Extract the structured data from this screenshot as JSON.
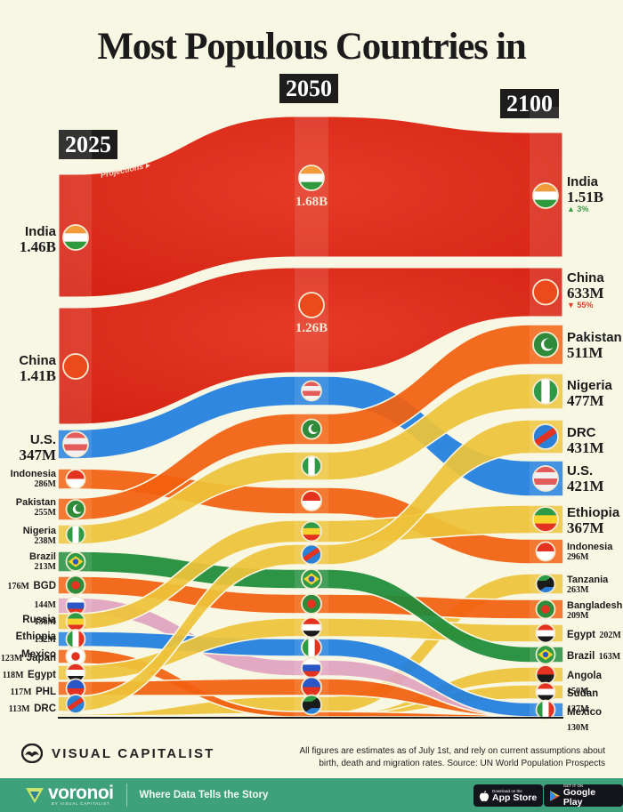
{
  "title": "Most Populous Countries in",
  "years": [
    "2025",
    "2050",
    "2100"
  ],
  "projections_label": "Projections ▸",
  "colors": {
    "background": "#f8f7e4",
    "india_china": "#e5321f",
    "us": "#1f7ee0",
    "orange": "#f2600f",
    "yellow": "#eec33a",
    "green": "#1d8c3a",
    "pink": "#e0a3c0",
    "footer": "#3fa07c"
  },
  "labels_2025": [
    {
      "name": "India",
      "value": "1.46B",
      "style": "big"
    },
    {
      "name": "China",
      "value": "1.41B",
      "style": "big"
    },
    {
      "name": "U.S.",
      "value": "347M",
      "style": "big"
    },
    {
      "name": "Indonesia",
      "value": "286M",
      "style": "small"
    },
    {
      "name": "Pakistan",
      "value": "255M",
      "style": "small"
    },
    {
      "name": "Nigeria",
      "value": "238M",
      "style": "small"
    },
    {
      "name": "Brazil",
      "value": "213M",
      "style": "small"
    },
    {
      "name": "BGD",
      "value": "176M",
      "style": "inline"
    },
    {
      "name": "Russia",
      "value": "144M",
      "style": "inline"
    },
    {
      "name": "Ethiopia",
      "value": "136M",
      "style": "inline"
    },
    {
      "name": "Mexico",
      "value": "132M",
      "style": "inline"
    },
    {
      "name": "Japan",
      "value": "123M",
      "style": "inline"
    },
    {
      "name": "Egypt",
      "value": "118M",
      "style": "inline"
    },
    {
      "name": "PHL",
      "value": "117M",
      "style": "inline"
    },
    {
      "name": "DRC",
      "value": "113M",
      "style": "inline"
    }
  ],
  "labels_2050": [
    {
      "name": "India",
      "value": "1.68B"
    },
    {
      "name": "China",
      "value": "1.26B"
    }
  ],
  "labels_2100": [
    {
      "name": "India",
      "value": "1.51B",
      "style": "big",
      "change": "▲ 3%",
      "dir": "up"
    },
    {
      "name": "China",
      "value": "633M",
      "style": "big",
      "change": "▼ 55%",
      "dir": "down"
    },
    {
      "name": "Pakistan",
      "value": "511M",
      "style": "big"
    },
    {
      "name": "Nigeria",
      "value": "477M",
      "style": "big"
    },
    {
      "name": "DRC",
      "value": "431M",
      "style": "big"
    },
    {
      "name": "U.S.",
      "value": "421M",
      "style": "big"
    },
    {
      "name": "Ethiopia",
      "value": "367M",
      "style": "big"
    },
    {
      "name": "Indonesia",
      "value": "296M",
      "style": "small"
    },
    {
      "name": "Tanzania",
      "value": "263M",
      "style": "small"
    },
    {
      "name": "Bangladesh",
      "value": "209M",
      "style": "small"
    },
    {
      "name": "Egypt",
      "value": "202M",
      "style": "inline"
    },
    {
      "name": "Brazil",
      "value": "163M",
      "style": "inline"
    },
    {
      "name": "Angola",
      "value": "150M",
      "style": "inline"
    },
    {
      "name": "Sudan",
      "value": "137M",
      "style": "inline"
    },
    {
      "name": "Mexico",
      "value": "130M",
      "style": "inline"
    }
  ],
  "chart_data": {
    "type": "bump-sankey",
    "title": "Most Populous Countries in 2025, 2050, 2100",
    "categories": [
      "2025",
      "2050",
      "2100"
    ],
    "unit": "population (millions)",
    "series": [
      {
        "name": "India",
        "values": [
          1460,
          1680,
          1510
        ],
        "color": "#e5321f"
      },
      {
        "name": "China",
        "values": [
          1410,
          1260,
          633
        ],
        "color": "#e5321f"
      },
      {
        "name": "U.S.",
        "values": [
          347,
          null,
          421
        ],
        "color": "#1f7ee0"
      },
      {
        "name": "Indonesia",
        "values": [
          286,
          null,
          296
        ],
        "color": "#f2600f"
      },
      {
        "name": "Pakistan",
        "values": [
          255,
          null,
          511
        ],
        "color": "#f2600f"
      },
      {
        "name": "Nigeria",
        "values": [
          238,
          null,
          477
        ],
        "color": "#eec33a"
      },
      {
        "name": "Brazil",
        "values": [
          213,
          null,
          163
        ],
        "color": "#1d8c3a"
      },
      {
        "name": "Bangladesh",
        "values": [
          176,
          null,
          209
        ],
        "color": "#f2600f"
      },
      {
        "name": "Russia",
        "values": [
          144,
          null,
          null
        ],
        "color": "#e0a3c0"
      },
      {
        "name": "Ethiopia",
        "values": [
          136,
          null,
          367
        ],
        "color": "#eec33a"
      },
      {
        "name": "Mexico",
        "values": [
          132,
          null,
          130
        ],
        "color": "#1f7ee0"
      },
      {
        "name": "Japan",
        "values": [
          123,
          null,
          null
        ],
        "color": "#f2600f"
      },
      {
        "name": "Egypt",
        "values": [
          118,
          null,
          202
        ],
        "color": "#eec33a"
      },
      {
        "name": "Philippines",
        "values": [
          117,
          null,
          null
        ],
        "color": "#f2600f"
      },
      {
        "name": "DRC",
        "values": [
          113,
          null,
          431
        ],
        "color": "#eec33a"
      },
      {
        "name": "Tanzania",
        "values": [
          null,
          null,
          263
        ],
        "color": "#eec33a"
      },
      {
        "name": "Angola",
        "values": [
          null,
          null,
          150
        ],
        "color": "#eec33a"
      },
      {
        "name": "Sudan",
        "values": [
          null,
          null,
          137
        ],
        "color": "#eec33a"
      }
    ],
    "rank_2050": [
      "India",
      "China",
      "U.S.",
      "Pakistan",
      "Nigeria",
      "Indonesia",
      "Ethiopia",
      "DRC",
      "Brazil",
      "Bangladesh",
      "Egypt",
      "Mexico",
      "Russia",
      "Philippines",
      "Tanzania"
    ],
    "annotations": [
      "India 2100 change ▲ 3%",
      "China 2100 change ▼ 55%",
      "Projections ▸"
    ]
  },
  "footer": {
    "brand": "VISUAL CAPITALIST",
    "note": "All figures are estimates as of July 1st, and rely on current assumptions about birth, death and migration rates. Source: UN World Population Prospects",
    "voronoi": "voronoi",
    "voronoi_sub": "BY VISUAL CAPITALIST",
    "tagline": "Where Data Tells the Story",
    "app_store_small": "Download on the",
    "app_store": "App Store",
    "google_small": "GET IT ON",
    "google": "Google Play"
  }
}
